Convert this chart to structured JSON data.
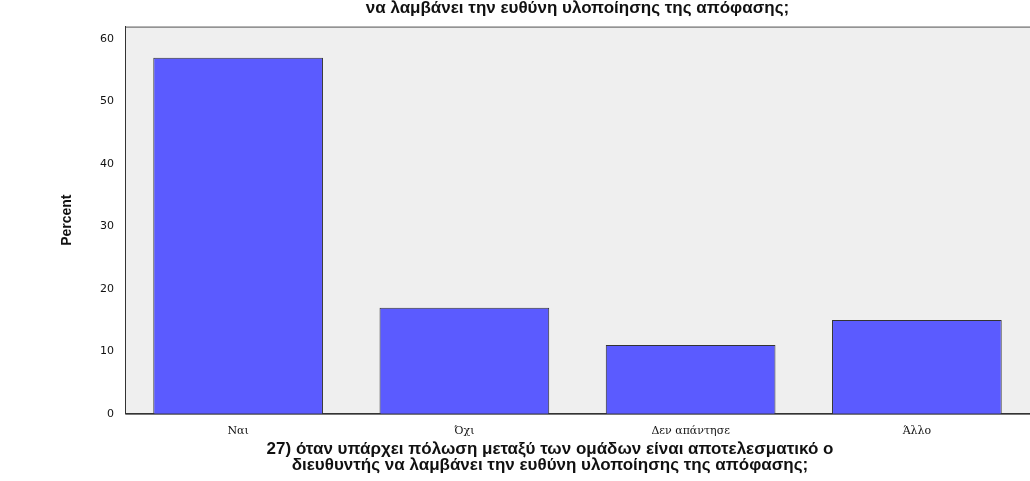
{
  "chart_data": {
    "type": "bar",
    "title": "να λαμβάνει την ευθύνη υλοποίησης της απόφασης;",
    "xlabel": "27) όταν υπάρχει πόλωση μεταξύ των ομάδων είναι αποτελεσματικό ο διευθυντής να λαμβάνει την ευθύνη υλοποίησης της απόφασης;",
    "ylabel": "Percent",
    "categories": [
      "Ναι",
      "Όχι",
      "Δεν απάντησε",
      "Άλλο"
    ],
    "values": [
      57,
      17,
      11,
      15
    ],
    "color": "#5b5bff",
    "ylim": [
      0,
      62
    ],
    "yticks": [
      0,
      10,
      20,
      30,
      40,
      50,
      60
    ],
    "grid": false,
    "legend": false
  }
}
